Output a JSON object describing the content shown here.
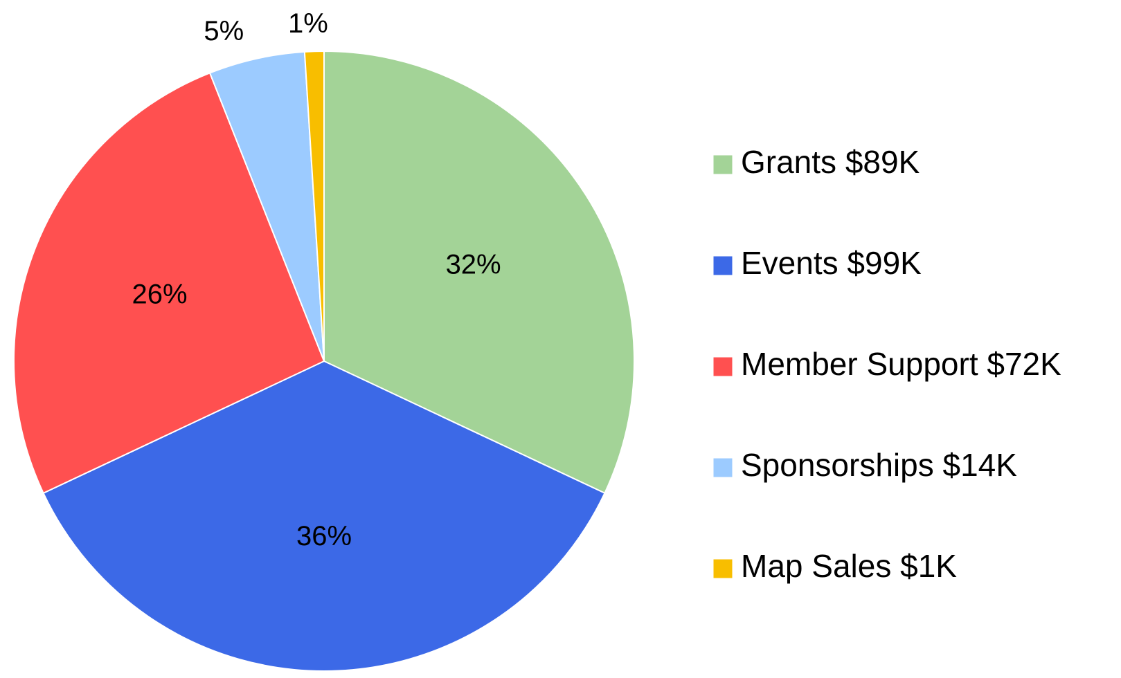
{
  "chart_data": {
    "type": "pie",
    "categories": [
      "Grants $89K",
      "Events $99K",
      "Member Support $72K",
      "Sponsorships $14K",
      "Map Sales $1K"
    ],
    "values": [
      32,
      36,
      26,
      5,
      1
    ],
    "value_labels": [
      "32%",
      "36%",
      "26%",
      "5%",
      "1%"
    ],
    "colors": [
      "#a3d397",
      "#3c69e7",
      "#ff5050",
      "#9ccbff",
      "#f8be00"
    ],
    "legend": "right"
  }
}
